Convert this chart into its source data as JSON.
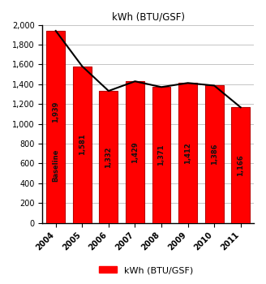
{
  "years": [
    "2004",
    "2005",
    "2006",
    "2007",
    "2008",
    "2009",
    "2010",
    "2011"
  ],
  "values": [
    1939,
    1581,
    1332,
    1429,
    1371,
    1412,
    1386,
    1166
  ],
  "bar_color": "#FF0000",
  "bar_edge_color": "#BB0000",
  "line_color": "#000000",
  "title": "kWh (BTU/GSF)",
  "ylim": [
    0,
    2000
  ],
  "yticks": [
    0,
    200,
    400,
    600,
    800,
    1000,
    1200,
    1400,
    1600,
    1800,
    2000
  ],
  "legend_label": "kWh (BTU/GSF)",
  "baseline_label": "Baseline",
  "background_color": "#FFFFFF",
  "grid_color": "#BBBBBB",
  "label_fontsize": 6.0,
  "title_fontsize": 8.5,
  "tick_fontsize": 7.0
}
